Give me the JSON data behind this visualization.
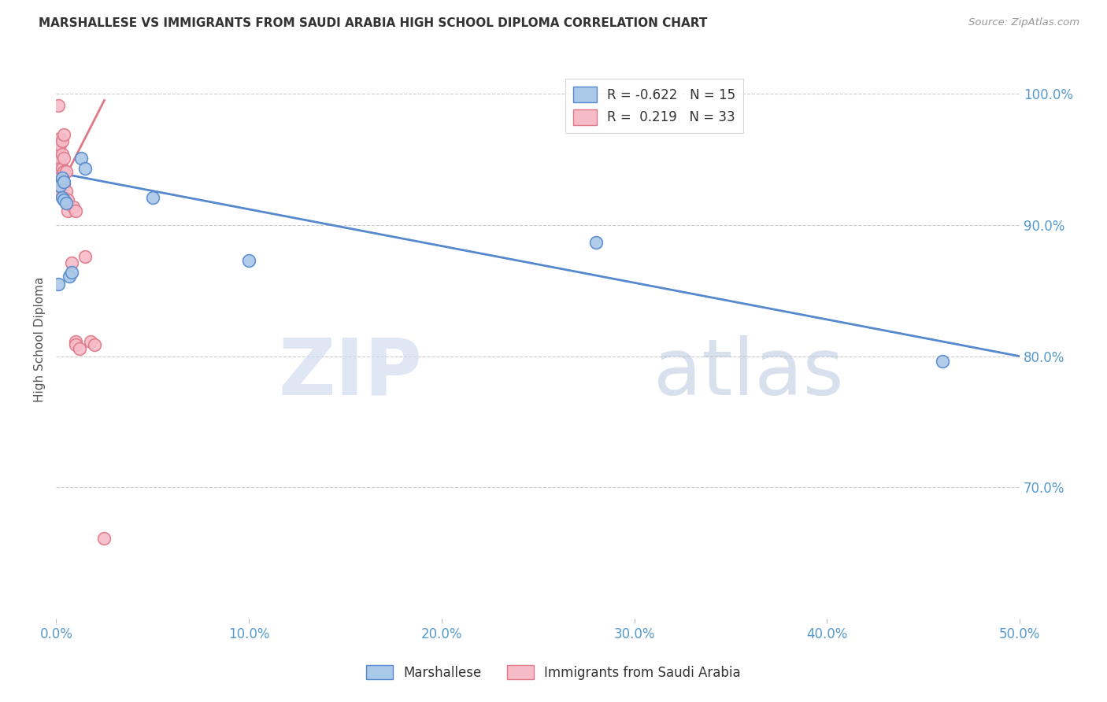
{
  "title": "MARSHALLESE VS IMMIGRANTS FROM SAUDI ARABIA HIGH SCHOOL DIPLOMA CORRELATION CHART",
  "source": "Source: ZipAtlas.com",
  "xlabel_ticks": [
    "0.0%",
    "10.0%",
    "20.0%",
    "30.0%",
    "40.0%",
    "50.0%"
  ],
  "xtick_vals": [
    0.0,
    0.1,
    0.2,
    0.3,
    0.4,
    0.5
  ],
  "ylabel": "High School Diploma",
  "ytick_vals": [
    0.7,
    0.8,
    0.9,
    1.0
  ],
  "ytick_labels": [
    "70.0%",
    "80.0%",
    "90.0%",
    "100.0%"
  ],
  "xlim": [
    0.0,
    0.5
  ],
  "ylim": [
    0.6,
    1.025
  ],
  "blue_label": "Marshallese",
  "pink_label": "Immigrants from Saudi Arabia",
  "blue_R": -0.622,
  "blue_N": 15,
  "pink_R": 0.219,
  "pink_N": 33,
  "blue_color": "#aac8e8",
  "pink_color": "#f5bcc8",
  "blue_line_color": "#5588cc",
  "pink_line_color": "#e07888",
  "blue_line_x": [
    0.0,
    0.5
  ],
  "blue_line_y": [
    0.94,
    0.8
  ],
  "pink_line_x": [
    0.0,
    0.025
  ],
  "pink_line_y": [
    0.923,
    0.995
  ],
  "blue_points": [
    [
      0.001,
      0.855
    ],
    [
      0.002,
      0.93
    ],
    [
      0.003,
      0.936
    ],
    [
      0.003,
      0.921
    ],
    [
      0.004,
      0.933
    ],
    [
      0.004,
      0.919
    ],
    [
      0.005,
      0.917
    ],
    [
      0.007,
      0.861
    ],
    [
      0.008,
      0.864
    ],
    [
      0.013,
      0.951
    ],
    [
      0.015,
      0.943
    ],
    [
      0.05,
      0.921
    ],
    [
      0.1,
      0.873
    ],
    [
      0.28,
      0.887
    ],
    [
      0.46,
      0.796
    ]
  ],
  "pink_points": [
    [
      0.001,
      0.991
    ],
    [
      0.001,
      0.963
    ],
    [
      0.001,
      0.959
    ],
    [
      0.001,
      0.953
    ],
    [
      0.002,
      0.966
    ],
    [
      0.002,
      0.961
    ],
    [
      0.002,
      0.949
    ],
    [
      0.002,
      0.943
    ],
    [
      0.002,
      0.931
    ],
    [
      0.002,
      0.926
    ],
    [
      0.003,
      0.964
    ],
    [
      0.003,
      0.954
    ],
    [
      0.003,
      0.943
    ],
    [
      0.003,
      0.936
    ],
    [
      0.003,
      0.928
    ],
    [
      0.004,
      0.969
    ],
    [
      0.004,
      0.951
    ],
    [
      0.004,
      0.941
    ],
    [
      0.004,
      0.931
    ],
    [
      0.005,
      0.941
    ],
    [
      0.005,
      0.926
    ],
    [
      0.006,
      0.919
    ],
    [
      0.006,
      0.911
    ],
    [
      0.008,
      0.871
    ],
    [
      0.009,
      0.914
    ],
    [
      0.01,
      0.911
    ],
    [
      0.01,
      0.811
    ],
    [
      0.01,
      0.809
    ],
    [
      0.012,
      0.806
    ],
    [
      0.015,
      0.876
    ],
    [
      0.018,
      0.811
    ],
    [
      0.02,
      0.809
    ],
    [
      0.025,
      0.661
    ]
  ],
  "watermark_zip": "ZIP",
  "watermark_atlas": "atlas",
  "background_color": "#ffffff",
  "grid_color": "#cccccc"
}
